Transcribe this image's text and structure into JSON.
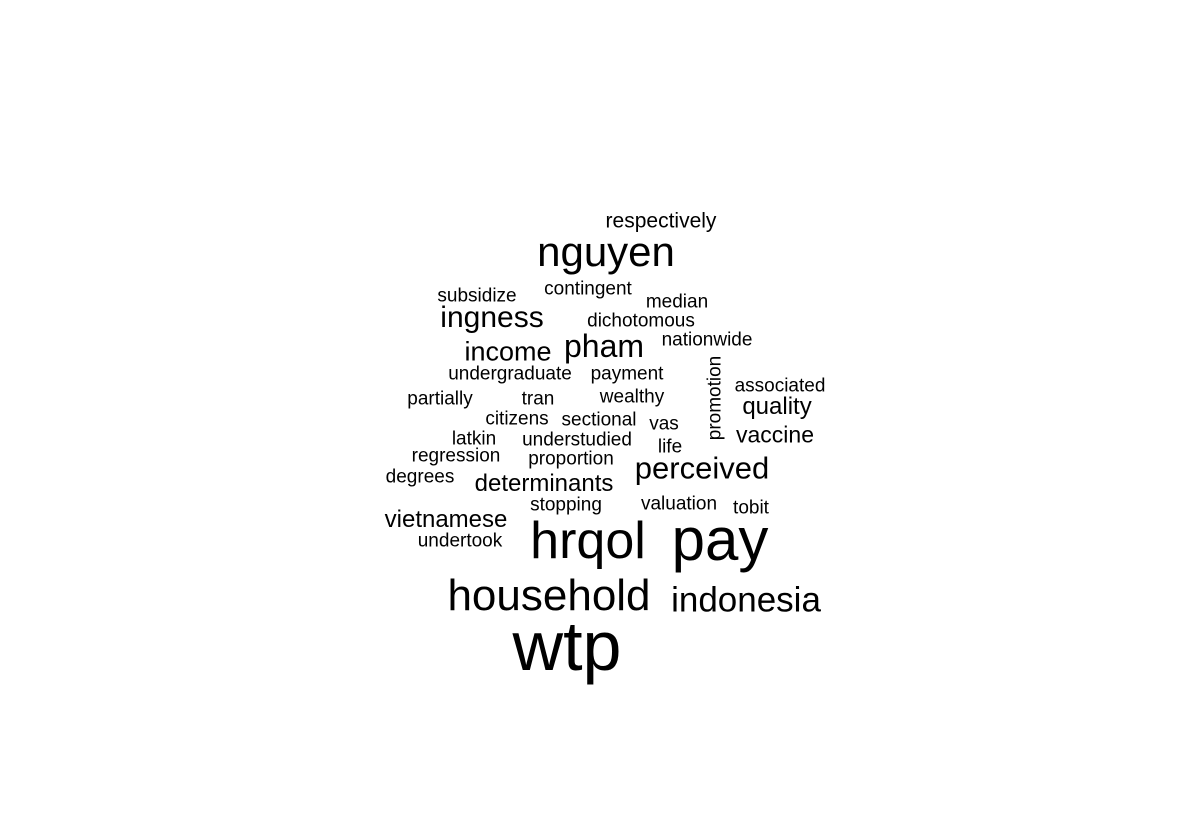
{
  "chart_data": {
    "type": "wordcloud",
    "title": "",
    "words": [
      {
        "text": "wtp",
        "weight": 100
      },
      {
        "text": "pay",
        "weight": 82
      },
      {
        "text": "hrqol",
        "weight": 72
      },
      {
        "text": "household",
        "weight": 60
      },
      {
        "text": "nguyen",
        "weight": 56
      },
      {
        "text": "indonesia",
        "weight": 50
      },
      {
        "text": "pham",
        "weight": 44
      },
      {
        "text": "perceived",
        "weight": 43
      },
      {
        "text": "ingness",
        "weight": 42
      },
      {
        "text": "income",
        "weight": 38
      },
      {
        "text": "quality",
        "weight": 34
      },
      {
        "text": "determinants",
        "weight": 33
      },
      {
        "text": "vietnamese",
        "weight": 33
      },
      {
        "text": "vaccine",
        "weight": 32
      },
      {
        "text": "respectively",
        "weight": 29
      },
      {
        "text": "nationwide",
        "weight": 27
      },
      {
        "text": "promotion",
        "weight": 27
      },
      {
        "text": "associated",
        "weight": 27
      },
      {
        "text": "contingent",
        "weight": 27
      },
      {
        "text": "dichotomous",
        "weight": 27
      },
      {
        "text": "median",
        "weight": 27
      },
      {
        "text": "subsidize",
        "weight": 27
      },
      {
        "text": "undergraduate",
        "weight": 27
      },
      {
        "text": "payment",
        "weight": 27
      },
      {
        "text": "partially",
        "weight": 27
      },
      {
        "text": "tran",
        "weight": 27
      },
      {
        "text": "wealthy",
        "weight": 27
      },
      {
        "text": "citizens",
        "weight": 27
      },
      {
        "text": "sectional",
        "weight": 27
      },
      {
        "text": "vas",
        "weight": 27
      },
      {
        "text": "latkin",
        "weight": 27
      },
      {
        "text": "understudied",
        "weight": 27
      },
      {
        "text": "life",
        "weight": 27
      },
      {
        "text": "regression",
        "weight": 27
      },
      {
        "text": "proportion",
        "weight": 27
      },
      {
        "text": "degrees",
        "weight": 27
      },
      {
        "text": "stopping",
        "weight": 27
      },
      {
        "text": "valuation",
        "weight": 27
      },
      {
        "text": "tobit",
        "weight": 27
      },
      {
        "text": "undertook",
        "weight": 27
      }
    ]
  }
}
